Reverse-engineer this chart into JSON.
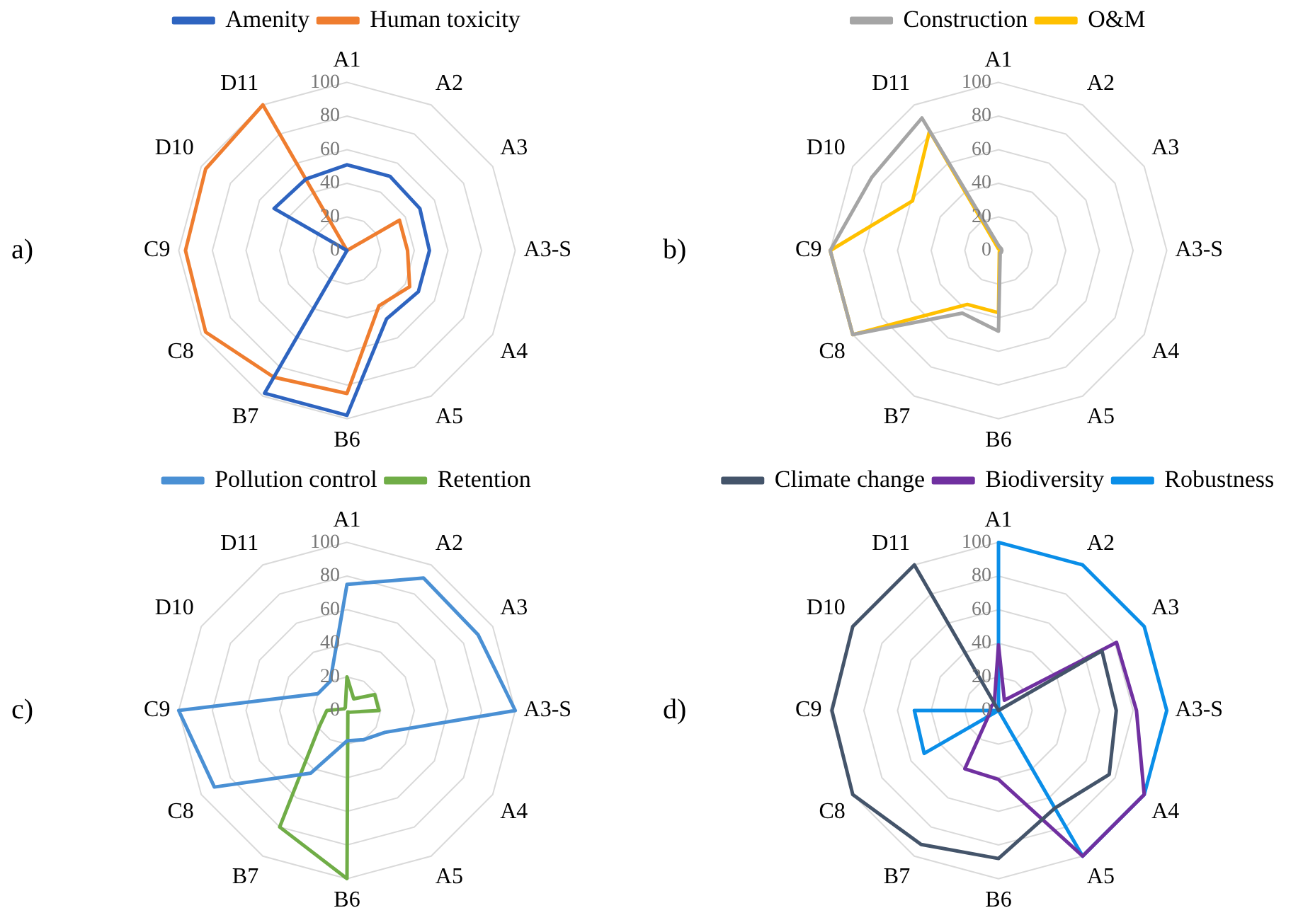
{
  "chart_data": [
    {
      "type": "radar",
      "categories": [
        "A1",
        "A2",
        "A3",
        "A3-S",
        "A4",
        "A5",
        "B6",
        "B7",
        "C8",
        "C9",
        "D10",
        "D11"
      ],
      "ylim": [
        0,
        100
      ],
      "yticks": [
        0,
        20,
        40,
        60,
        80,
        100
      ],
      "grid": true,
      "legend": "top",
      "marker": "none",
      "annotations": [
        "a)"
      ],
      "series": [
        {
          "name": "Amenity",
          "color": "#2e64c0",
          "values": [
            51,
            51,
            50,
            49,
            49,
            47,
            98,
            98,
            0,
            0,
            50,
            49
          ]
        },
        {
          "name": "Human toxicity",
          "color": "#ef7d2f",
          "values": [
            0,
            0,
            36,
            36,
            43,
            38,
            85,
            87,
            97,
            96,
            97,
            100
          ]
        }
      ]
    },
    {
      "type": "radar",
      "categories": [
        "A1",
        "A2",
        "A3",
        "A3-S",
        "A4",
        "A5",
        "B6",
        "B7",
        "C8",
        "C9",
        "D10",
        "D11"
      ],
      "ylim": [
        0,
        100
      ],
      "yticks": [
        0,
        20,
        40,
        60,
        80,
        100
      ],
      "grid": true,
      "legend": "top",
      "marker": "none",
      "annotations": [
        "b)"
      ],
      "series": [
        {
          "name": "Construction",
          "color": "#a5a5a5",
          "values": [
            3,
            2,
            2,
            2,
            2,
            2,
            48,
            43,
            100,
            100,
            87,
            91
          ]
        },
        {
          "name": "O&M",
          "color": "#ffc000",
          "values": [
            1,
            1,
            1,
            1,
            1,
            1,
            37,
            37,
            100,
            100,
            59,
            82
          ]
        }
      ]
    },
    {
      "type": "radar",
      "categories": [
        "A1",
        "A2",
        "A3",
        "A3-S",
        "A4",
        "A5",
        "B6",
        "B7",
        "C8",
        "C9",
        "D10",
        "D11"
      ],
      "ylim": [
        0,
        100
      ],
      "yticks": [
        0,
        20,
        40,
        60,
        80,
        100
      ],
      "grid": true,
      "legend": "top",
      "marker": "none",
      "annotations": [
        "c)"
      ],
      "series": [
        {
          "name": "Pollution control",
          "color": "#4a90d4",
          "values": [
            75,
            91,
            90,
            100,
            26,
            20,
            18,
            43,
            91,
            100,
            20,
            20
          ]
        },
        {
          "name": "Retention",
          "color": "#70ad47",
          "values": [
            20,
            8,
            19,
            19,
            2,
            1,
            100,
            80,
            19,
            12,
            2,
            2
          ]
        }
      ]
    },
    {
      "type": "radar",
      "categories": [
        "A1",
        "A2",
        "A3",
        "A3-S",
        "A4",
        "A5",
        "B6",
        "B7",
        "C8",
        "C9",
        "D10",
        "D11"
      ],
      "ylim": [
        0,
        100
      ],
      "yticks": [
        0,
        20,
        40,
        60,
        80,
        100
      ],
      "grid": true,
      "legend": "top",
      "marker": "none",
      "annotations": [
        "d)"
      ],
      "series": [
        {
          "name": "Climate change",
          "color": "#44546a",
          "values": [
            0,
            0,
            71,
            70,
            76,
            67,
            88,
            92,
            100,
            99,
            100,
            100
          ]
        },
        {
          "name": "Biodiversity",
          "color": "#7030a0",
          "values": [
            39,
            7,
            81,
            82,
            100,
            100,
            41,
            40,
            7,
            5,
            5,
            5
          ]
        },
        {
          "name": "Robustness",
          "color": "#0a8ee8",
          "values": [
            100,
            100,
            100,
            100,
            100,
            100,
            0,
            0,
            51,
            50,
            0,
            0
          ]
        }
      ]
    }
  ]
}
